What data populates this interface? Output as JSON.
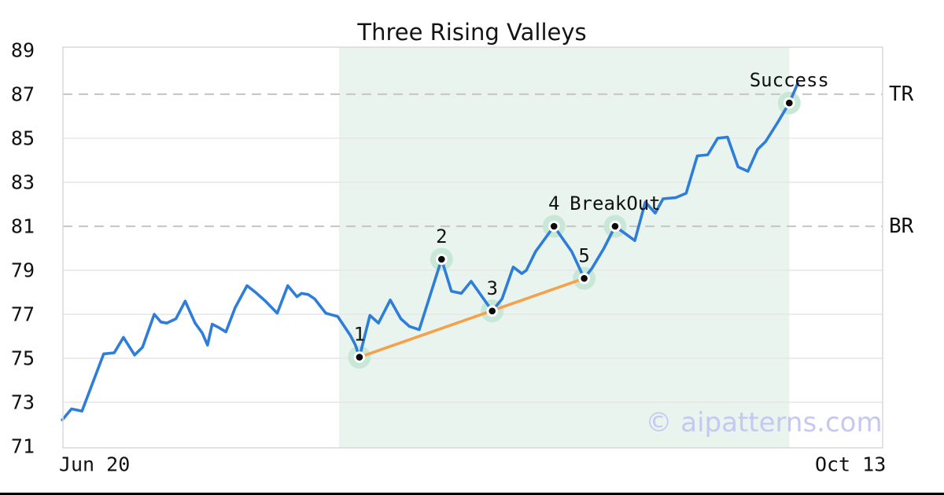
{
  "title": "Three Rising Valleys",
  "watermark": "© aipatterns.com",
  "chart_data": {
    "type": "line",
    "title": "Three Rising Valleys",
    "x_ticks": [
      {
        "day": 0,
        "label": "Jun 20"
      },
      {
        "day": 115,
        "label": "Oct 13"
      }
    ],
    "y_ticks": [
      71,
      73,
      75,
      77,
      79,
      81,
      83,
      85,
      87,
      89
    ],
    "xlim_days": [
      -4.8,
      119.9
    ],
    "ylim": [
      70.93,
      89.14
    ],
    "gridlines_y": [
      73,
      75,
      77,
      79,
      83,
      85
    ],
    "grid": "horizontal-only",
    "legend": "none",
    "levels": [
      {
        "label": "TR",
        "value": 87,
        "style": "dashed"
      },
      {
        "label": "BR",
        "value": 81,
        "style": "dashed"
      }
    ],
    "pattern_zone_days": [
      37.2,
      105.7
    ],
    "trendline": {
      "from": {
        "day": 40.3,
        "value": 75.05
      },
      "to": {
        "day": 74.5,
        "value": 78.63
      }
    },
    "markers": [
      {
        "label": "1",
        "day": 40.3,
        "value": 75.05
      },
      {
        "label": "2",
        "day": 52.8,
        "value": 79.5
      },
      {
        "label": "3",
        "day": 60.5,
        "value": 77.15
      },
      {
        "label": "4",
        "day": 69.9,
        "value": 81.0
      },
      {
        "label": "5",
        "day": 74.5,
        "value": 78.63
      },
      {
        "label": "BreakOut",
        "day": 79.2,
        "value": 81.0
      },
      {
        "label": "Success",
        "day": 105.7,
        "value": 86.6
      }
    ],
    "series": [
      {
        "name": "price",
        "points": [
          [
            -4.9,
            72.2
          ],
          [
            -3.5,
            72.7
          ],
          [
            -1.9,
            72.6
          ],
          [
            1.4,
            75.2
          ],
          [
            3.0,
            75.25
          ],
          [
            4.4,
            75.95
          ],
          [
            6.1,
            75.15
          ],
          [
            7.3,
            75.5
          ],
          [
            9.1,
            77.0
          ],
          [
            10.1,
            76.65
          ],
          [
            11.0,
            76.6
          ],
          [
            12.4,
            76.8
          ],
          [
            13.8,
            77.6
          ],
          [
            15.3,
            76.6
          ],
          [
            16.4,
            76.15
          ],
          [
            17.2,
            75.6
          ],
          [
            17.9,
            76.55
          ],
          [
            18.9,
            76.4
          ],
          [
            20.0,
            76.2
          ],
          [
            21.4,
            77.3
          ],
          [
            23.2,
            78.3
          ],
          [
            24.5,
            78.0
          ],
          [
            26.0,
            77.6
          ],
          [
            27.8,
            77.05
          ],
          [
            29.4,
            78.3
          ],
          [
            30.8,
            77.8
          ],
          [
            31.5,
            77.95
          ],
          [
            32.5,
            77.9
          ],
          [
            33.5,
            77.7
          ],
          [
            35.2,
            77.05
          ],
          [
            37.0,
            76.9
          ],
          [
            37.9,
            76.5
          ],
          [
            38.9,
            76.05
          ],
          [
            39.7,
            75.6
          ],
          [
            40.3,
            75.05
          ],
          [
            41.9,
            76.95
          ],
          [
            43.2,
            76.6
          ],
          [
            45.0,
            77.65
          ],
          [
            46.6,
            76.8
          ],
          [
            47.9,
            76.45
          ],
          [
            49.4,
            76.3
          ],
          [
            52.8,
            79.5
          ],
          [
            54.3,
            78.05
          ],
          [
            55.8,
            77.95
          ],
          [
            57.3,
            78.5
          ],
          [
            59.2,
            77.7
          ],
          [
            60.5,
            77.15
          ],
          [
            62.0,
            77.7
          ],
          [
            63.7,
            79.15
          ],
          [
            65.0,
            78.85
          ],
          [
            65.7,
            79.0
          ],
          [
            67.1,
            79.85
          ],
          [
            69.9,
            81.0
          ],
          [
            72.6,
            79.85
          ],
          [
            74.5,
            78.63
          ],
          [
            75.7,
            79.1
          ],
          [
            77.5,
            80.0
          ],
          [
            79.2,
            81.0
          ],
          [
            82.2,
            80.35
          ],
          [
            83.8,
            82.1
          ],
          [
            85.3,
            81.6
          ],
          [
            86.5,
            82.25
          ],
          [
            88.4,
            82.3
          ],
          [
            90.0,
            82.5
          ],
          [
            91.7,
            84.2
          ],
          [
            93.3,
            84.25
          ],
          [
            94.8,
            85.0
          ],
          [
            96.3,
            85.05
          ],
          [
            97.9,
            83.7
          ],
          [
            99.4,
            83.5
          ],
          [
            100.9,
            84.5
          ],
          [
            102.1,
            84.85
          ],
          [
            103.9,
            85.7
          ],
          [
            105.7,
            86.6
          ],
          [
            107.0,
            87.5
          ]
        ]
      }
    ],
    "colors": {
      "line": "#2e7dd9",
      "trendline": "#f5a04b",
      "marker_halo": "#c9e7d6",
      "marker_dot": "#0a0a0a",
      "marker_ring": "#ffffff",
      "zone": "#e9f4ef",
      "grid": "#e6e6e6",
      "dashed_level": "#c9c9c9",
      "plot_border": "#d9d9d9",
      "text": "#111111",
      "watermark": "#c5c8f1"
    }
  }
}
